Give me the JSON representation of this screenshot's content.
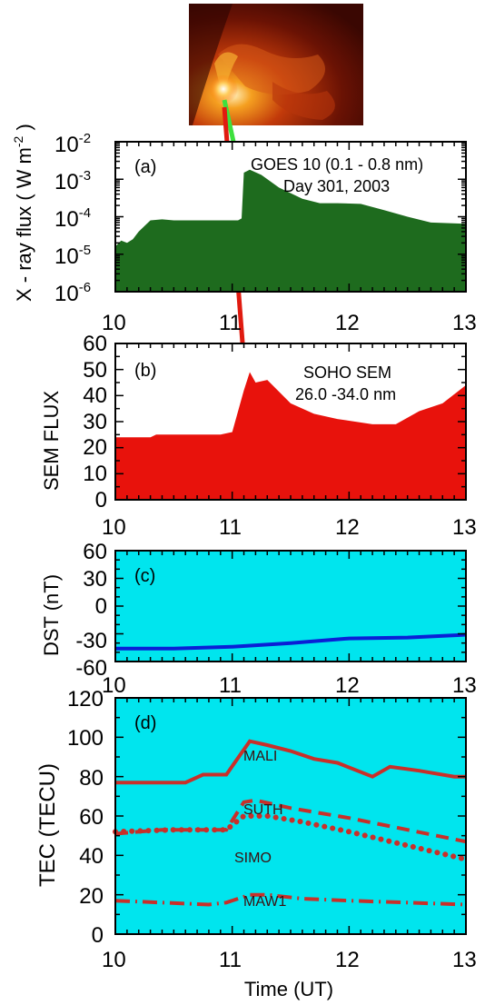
{
  "chart_data": [
    {
      "type": "area",
      "panel_label": "(a)",
      "annotations": [
        "GOES 10 (0.1 - 0.8 nm)",
        "Day 301, 2003"
      ],
      "ylabel": "X - ray flux ( W m-2 )",
      "x_ticks": [
        "10",
        "11",
        "12",
        "13"
      ],
      "y_ticks": [
        "10-6",
        "10-5",
        "10-4",
        "10-3",
        "10-2"
      ],
      "xlim": [
        10,
        13
      ],
      "ylim_log10": [
        -6,
        -2
      ],
      "y_scale": "log",
      "fill_color": "#1e6b1e",
      "series": [
        {
          "x": [
            10.0,
            10.05,
            10.1,
            10.15,
            10.2,
            10.3,
            10.4,
            10.5,
            10.7,
            10.9,
            11.0,
            11.05,
            11.08,
            11.1,
            11.15,
            11.25,
            11.4,
            11.6,
            11.75,
            11.9,
            12.1,
            12.3,
            12.5,
            12.7,
            13.0
          ],
          "y": [
            1.6e-05,
            2.3e-05,
            2e-05,
            2.5e-05,
            4e-05,
            8e-05,
            8.5e-05,
            8e-05,
            8e-05,
            8e-05,
            8e-05,
            8e-05,
            9e-05,
            0.0015,
            0.0018,
            0.0013,
            0.0006,
            0.0003,
            0.00023,
            0.00023,
            0.00022,
            0.00015,
            0.0001,
            7e-05,
            6.5e-05
          ]
        }
      ]
    },
    {
      "type": "area",
      "panel_label": "(b)",
      "annotations": [
        "SOHO SEM",
        "26.0 -34.0 nm"
      ],
      "ylabel": "SEM FLUX",
      "x_ticks": [
        "10",
        "11",
        "12",
        "13"
      ],
      "y_ticks": [
        "0",
        "5",
        "10",
        "15",
        "20",
        "25",
        "30",
        "35",
        "40",
        "45",
        "50",
        "55",
        "60"
      ],
      "xlim": [
        10,
        13
      ],
      "ylim": [
        0,
        60
      ],
      "fill_color": "#e8120c",
      "series": [
        {
          "x": [
            10.0,
            10.3,
            10.35,
            10.9,
            11.0,
            11.1,
            11.15,
            11.2,
            11.3,
            11.5,
            11.7,
            11.9,
            12.2,
            12.4,
            12.6,
            12.8,
            13.0
          ],
          "y": [
            24,
            24,
            25,
            25,
            26,
            42,
            49,
            45,
            46,
            37,
            33,
            31,
            29,
            29,
            34,
            37,
            44
          ]
        }
      ]
    },
    {
      "type": "line",
      "panel_label": "(c)",
      "ylabel": "DST (nT)",
      "x_ticks": [
        "10",
        "11",
        "12",
        "13"
      ],
      "y_ticks": [
        "-60",
        "-30",
        "0",
        "30",
        "60"
      ],
      "xlim": [
        10,
        13
      ],
      "ylim": [
        -60,
        60
      ],
      "background": "#00e5ee",
      "series": [
        {
          "color": "#0a1fd6",
          "x": [
            10.0,
            10.5,
            11.0,
            11.5,
            12.0,
            12.5,
            13.0
          ],
          "y": [
            -46,
            -46,
            -44,
            -40,
            -35,
            -34,
            -31
          ]
        }
      ]
    },
    {
      "type": "line",
      "panel_label": "(d)",
      "xlabel": "Time (UT)",
      "ylabel": "TEC (TECU)",
      "x_ticks": [
        "10",
        "11",
        "12",
        "13"
      ],
      "y_ticks": [
        "0",
        "20",
        "40",
        "60",
        "80",
        "100",
        "120"
      ],
      "xlim": [
        10,
        13
      ],
      "ylim": [
        0,
        120
      ],
      "background": "#00e5ee",
      "series_color": "#c8302a",
      "series": [
        {
          "name": "MALI",
          "style": "solid",
          "x": [
            10.0,
            10.6,
            10.75,
            10.95,
            11.15,
            11.3,
            11.5,
            11.7,
            11.9,
            12.2,
            12.35,
            12.6,
            12.9,
            13.0
          ],
          "y": [
            77,
            77,
            81,
            81,
            98,
            96,
            93,
            89,
            87,
            80,
            85,
            83,
            80,
            80
          ]
        },
        {
          "name": "SUTH",
          "style": "dashed",
          "x": [
            10.0,
            10.4,
            10.95,
            11.1,
            11.2,
            11.5,
            12.0,
            12.5,
            13.0
          ],
          "y": [
            51,
            53,
            53,
            67,
            68,
            64,
            59,
            53,
            47
          ]
        },
        {
          "name": "SIMO",
          "style": "dotted",
          "x": [
            10.0,
            10.5,
            10.95,
            11.1,
            11.3,
            11.6,
            12.0,
            12.5,
            13.0
          ],
          "y": [
            52,
            53,
            53,
            60,
            60,
            57,
            52,
            45,
            38
          ]
        },
        {
          "name": "MAW1",
          "style": "dashdot",
          "x": [
            10.0,
            10.4,
            10.8,
            10.95,
            11.15,
            11.3,
            11.6,
            12.0,
            12.5,
            13.0
          ],
          "y": [
            17,
            16,
            15,
            16,
            20,
            20,
            18,
            17,
            16,
            15
          ]
        }
      ]
    }
  ]
}
